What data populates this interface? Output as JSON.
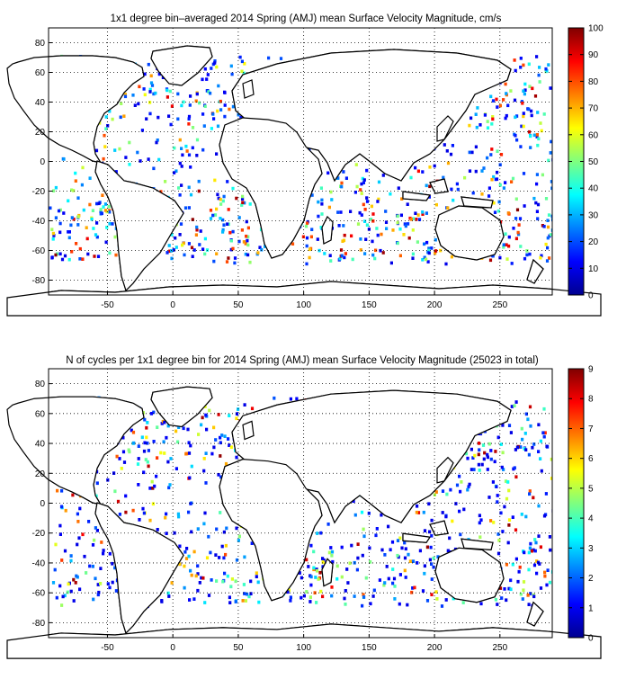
{
  "panels": [
    {
      "title": "1x1 degree bin–averaged 2014 Spring (AMJ) mean Surface Velocity Magnitude, cm/s",
      "x_ticks": [
        "-50",
        "0",
        "50",
        "100",
        "150",
        "200",
        "250"
      ],
      "y_ticks": [
        "80",
        "60",
        "40",
        "20",
        "0",
        "-20",
        "-40",
        "-60",
        "-80"
      ],
      "colorbar_ticks": [
        "100",
        "90",
        "80",
        "70",
        "60",
        "50",
        "40",
        "30",
        "20",
        "10",
        "0"
      ],
      "colorbar_range": [
        0,
        100
      ]
    },
    {
      "title": "N of cycles per 1x1 degree bin for 2014 Spring (AMJ) mean Surface Velocity Magnitude (25023 in total)",
      "x_ticks": [
        "-50",
        "0",
        "50",
        "100",
        "150",
        "200",
        "250"
      ],
      "y_ticks": [
        "80",
        "60",
        "40",
        "20",
        "0",
        "-20",
        "-40",
        "-60",
        "-80"
      ],
      "colorbar_ticks": [
        "9",
        "8",
        "7",
        "6",
        "5",
        "4",
        "3",
        "2",
        "1",
        "0"
      ],
      "colorbar_range": [
        0,
        9
      ]
    }
  ],
  "map": {
    "lon_range": [
      -95,
      290
    ],
    "lat_range": [
      -90,
      90
    ],
    "gridlines": "dotted",
    "colormap": "jet"
  }
}
